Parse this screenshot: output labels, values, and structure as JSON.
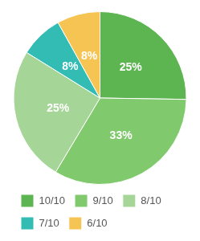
{
  "chart_data": {
    "type": "pie",
    "categories": [
      "10/10",
      "9/10",
      "8/10",
      "7/10",
      "6/10"
    ],
    "values": [
      25,
      33,
      25,
      8,
      8
    ],
    "value_labels": [
      "25%",
      "33%",
      "25%",
      "8%",
      "8%"
    ],
    "colors": [
      "#5db552",
      "#80c96d",
      "#a6d598",
      "#32bcb4",
      "#f6c453"
    ],
    "data_labels": true,
    "legend": "bottom"
  }
}
